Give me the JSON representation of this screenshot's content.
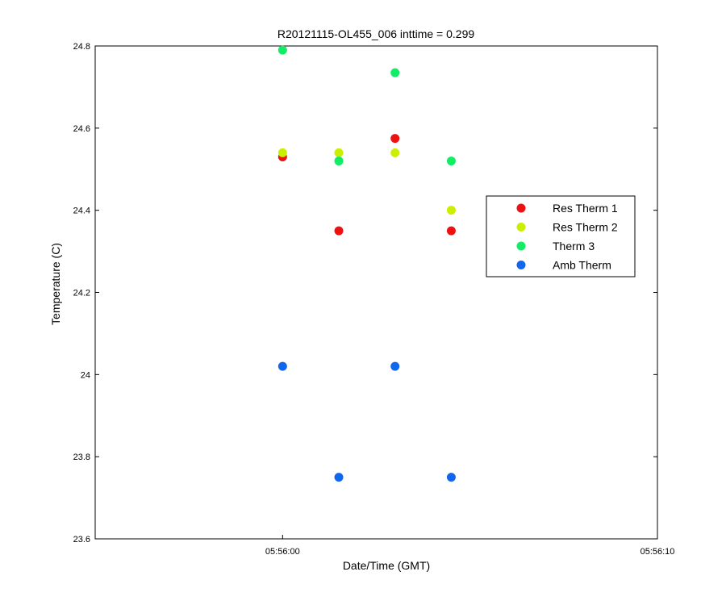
{
  "chart_data": {
    "type": "scatter",
    "title": "R20121115-OL455_006 inttime = 0.299",
    "xlabel": "Date/Time (GMT)",
    "ylabel": "Temperature (C)",
    "xlim": [
      "05:55:55",
      "05:56:10"
    ],
    "ylim": [
      23.6,
      24.8
    ],
    "x_ticks": [
      "05:56:00",
      "05:56:10"
    ],
    "y_ticks": [
      "23.6",
      "23.8",
      "24",
      "24.2",
      "24.4",
      "24.6",
      "24.8"
    ],
    "grid": false,
    "legend_position": "right",
    "x": [
      "05:56:00",
      "05:56:01.5",
      "05:56:03",
      "05:56:04.5"
    ],
    "series": [
      {
        "name": "Res Therm 1",
        "color": "#ee1111",
        "values": [
          24.53,
          24.35,
          24.575,
          24.35
        ]
      },
      {
        "name": "Res Therm 2",
        "color": "#ccee00",
        "values": [
          24.54,
          24.54,
          24.54,
          24.4
        ]
      },
      {
        "name": "Therm 3",
        "color": "#11ee66",
        "values": [
          24.79,
          24.52,
          24.735,
          24.52
        ]
      },
      {
        "name": "Amb Therm",
        "color": "#1166ee",
        "values": [
          24.02,
          23.75,
          24.02,
          23.75
        ]
      }
    ]
  }
}
